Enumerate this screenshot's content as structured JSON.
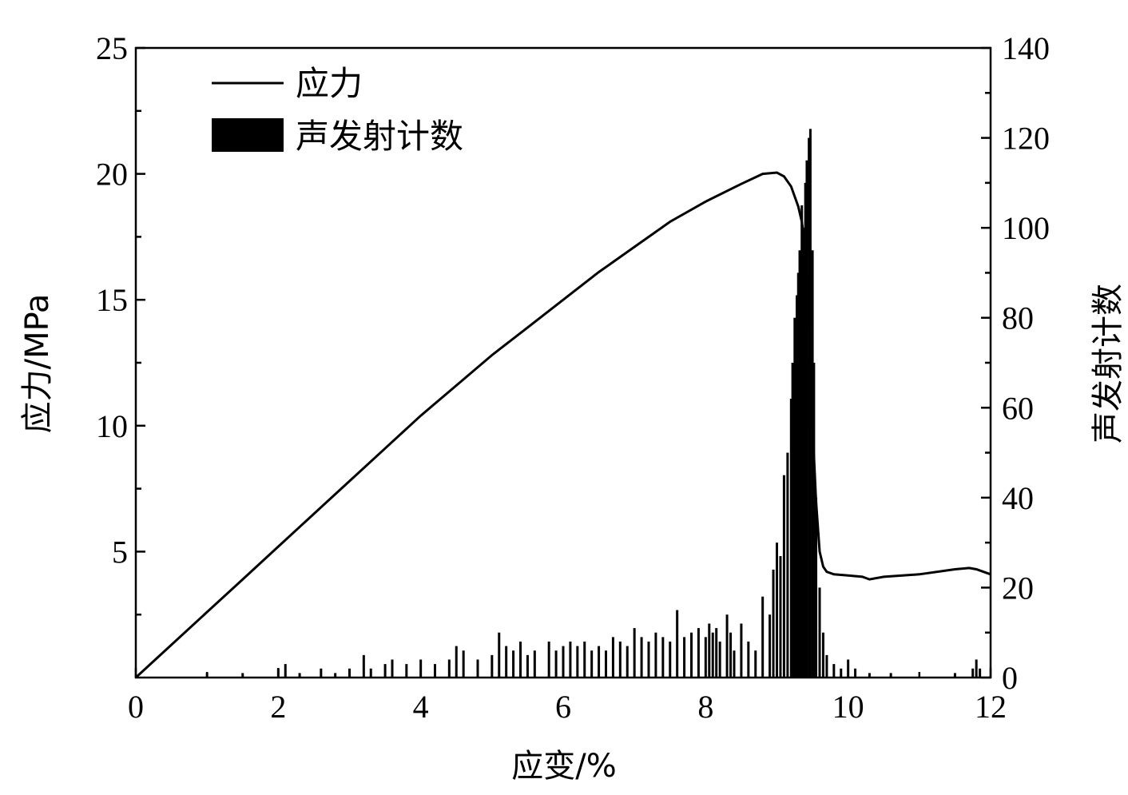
{
  "chart_data": {
    "type": "line+bar",
    "xlabel": "应变/%",
    "ylabel": "应力/MPa",
    "y2label": "声发射计数",
    "xlim": [
      0,
      12
    ],
    "ylim": [
      0,
      25
    ],
    "y2lim": [
      0,
      140
    ],
    "x_ticks": [
      0,
      2,
      4,
      6,
      8,
      10,
      12
    ],
    "y_ticks": [
      0,
      5,
      10,
      15,
      20,
      25
    ],
    "y2_ticks": [
      0,
      20,
      40,
      60,
      80,
      100,
      120,
      140
    ],
    "legend": {
      "placement": "top-left",
      "entries": [
        "应力",
        "声发射计数"
      ]
    },
    "grid": false,
    "colors": {
      "stress": "#000000",
      "ae": "#000000"
    },
    "series": [
      {
        "name": "应力",
        "kind": "line",
        "axis": "left",
        "x": [
          0,
          0.5,
          1,
          1.5,
          2,
          2.5,
          3,
          3.5,
          4,
          4.5,
          5,
          5.5,
          6,
          6.5,
          7,
          7.5,
          8,
          8.5,
          8.8,
          9.0,
          9.1,
          9.2,
          9.3,
          9.35,
          9.4,
          9.45,
          9.5,
          9.55,
          9.6,
          9.65,
          9.7,
          9.8,
          10.0,
          10.2,
          10.3,
          10.5,
          11.0,
          11.5,
          11.7,
          11.8,
          12.0
        ],
        "y": [
          0,
          1.3,
          2.6,
          3.9,
          5.2,
          6.5,
          7.8,
          9.1,
          10.4,
          11.6,
          12.8,
          13.9,
          15.0,
          16.1,
          17.1,
          18.1,
          18.9,
          19.6,
          20.0,
          20.05,
          19.9,
          19.5,
          18.7,
          18.1,
          17.0,
          14.0,
          10.0,
          7.0,
          5.0,
          4.4,
          4.2,
          4.1,
          4.05,
          4.0,
          3.9,
          4.0,
          4.1,
          4.3,
          4.35,
          4.3,
          4.1
        ]
      },
      {
        "name": "声发射计数",
        "kind": "bar",
        "axis": "right",
        "x": [
          1.0,
          1.5,
          2.0,
          2.1,
          2.3,
          2.6,
          2.8,
          3.0,
          3.2,
          3.3,
          3.5,
          3.6,
          3.8,
          4.0,
          4.2,
          4.4,
          4.5,
          4.6,
          4.8,
          5.0,
          5.1,
          5.2,
          5.3,
          5.4,
          5.5,
          5.6,
          5.8,
          5.9,
          6.0,
          6.1,
          6.2,
          6.3,
          6.4,
          6.5,
          6.6,
          6.7,
          6.8,
          6.9,
          7.0,
          7.1,
          7.2,
          7.3,
          7.4,
          7.5,
          7.6,
          7.7,
          7.8,
          7.9,
          8.0,
          8.05,
          8.1,
          8.15,
          8.2,
          8.3,
          8.35,
          8.4,
          8.5,
          8.6,
          8.7,
          8.8,
          8.9,
          8.95,
          9.0,
          9.05,
          9.1,
          9.15,
          9.2,
          9.22,
          9.25,
          9.28,
          9.3,
          9.32,
          9.35,
          9.37,
          9.4,
          9.42,
          9.45,
          9.47,
          9.5,
          9.52,
          9.55,
          9.6,
          9.65,
          9.7,
          9.8,
          9.9,
          10.0,
          10.1,
          10.3,
          10.6,
          11.5,
          11.75,
          11.8,
          11.85
        ],
        "values": [
          1,
          1,
          2,
          3,
          1,
          2,
          1,
          2,
          5,
          2,
          3,
          4,
          3,
          4,
          3,
          4,
          7,
          6,
          4,
          5,
          10,
          7,
          6,
          8,
          5,
          6,
          8,
          6,
          7,
          8,
          7,
          8,
          6,
          7,
          6,
          9,
          8,
          7,
          11,
          9,
          8,
          10,
          9,
          8,
          15,
          9,
          10,
          11,
          9,
          12,
          10,
          11,
          8,
          14,
          10,
          6,
          12,
          8,
          6,
          18,
          14,
          24,
          30,
          27,
          45,
          50,
          62,
          70,
          80,
          85,
          90,
          95,
          105,
          100,
          110,
          115,
          120,
          122,
          95,
          70,
          40,
          20,
          10,
          5,
          3,
          2,
          4,
          2,
          1,
          1,
          1,
          2,
          4,
          2
        ]
      }
    ]
  }
}
